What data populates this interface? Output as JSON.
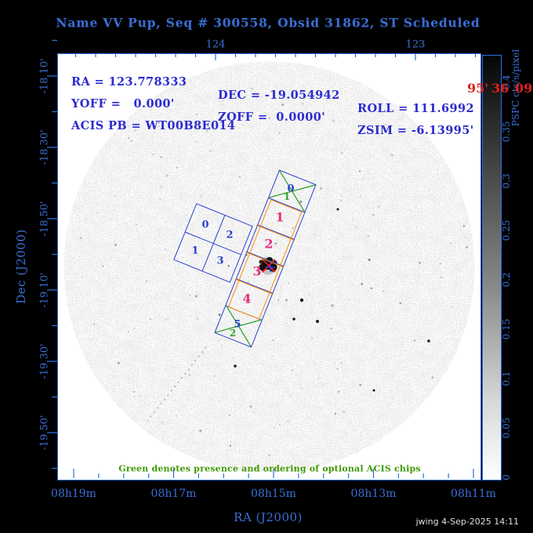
{
  "title": "Name VV Pup, Seq # 300558, Obsid 31862, ST Scheduled",
  "status_info": {
    "line1": [
      "RA = 123.778333",
      "DEC = -19.054942",
      "ROLL = 111.6992"
    ],
    "line2": [
      "YOFF =   0.000'",
      "ZOFF =  0.0000'",
      "ZSIM = -6.13995'"
    ],
    "line3": [
      "ACIS PB = WT00B8E014"
    ]
  },
  "axes": {
    "top": {
      "labels": [
        "124",
        "123"
      ]
    },
    "bottom": {
      "labels": [
        "08h19m",
        "08h17m",
        "08h15m",
        "08h13m",
        "08h11m"
      ],
      "title": "RA (J2000)"
    },
    "left": {
      "labels": [
        "-18 10'",
        "-18 30'",
        "-18 50'",
        "-19 10'",
        "-19 30'",
        "-19 50'"
      ],
      "title": "Dec (J2000)"
    }
  },
  "colorbar": {
    "unit_label": "PSPC cts/s/pixel",
    "tick_labels": [
      "0.4",
      "0.35",
      "0.3",
      "0.25",
      "0.2",
      "0.15",
      "0.1",
      "0.05",
      "0"
    ]
  },
  "overlays": {
    "acis_i": {
      "chip_labels": [
        "0",
        "2",
        "1",
        "3"
      ]
    },
    "acis_s": {
      "chip_labels": [
        "0",
        "1",
        "2",
        "3",
        "4",
        "5"
      ],
      "optional_order_labels": [
        "1",
        "2"
      ]
    },
    "note": "Green denotes presence and ordering of optional ACIS chips",
    "red_fragments": [
      "95'",
      "36",
      "09"
    ]
  },
  "footer": "jwing  4-Sep-2025 14:11",
  "colors": {
    "text_blue": "#3a6fd6",
    "frame_blue": "#2f6fdd",
    "chip_blue": "#2a3fd0",
    "chip_red": "#e62e77",
    "orange": "#ff8a00",
    "green_line": "#2fa32f",
    "green_text": "#3f9a00",
    "marker_red": "#ff1616",
    "red_text": "#e02020"
  },
  "chart_data": {
    "type": "heatmap",
    "title": "Name VV Pup, Seq # 300558, Obsid 31862, ST Scheduled",
    "xlabel": "RA (J2000)",
    "ylabel": "Dec (J2000)",
    "x_axis": {
      "top_tick_labels_deg": [
        "124",
        "123"
      ],
      "bottom_tick_labels": [
        "08h19m",
        "08h17m",
        "08h15m",
        "08h13m",
        "08h11m"
      ],
      "direction": "RA increases to the left"
    },
    "y_axis": {
      "tick_labels": [
        "-18 10'",
        "-18 30'",
        "-18 50'",
        "-19 10'",
        "-19 30'",
        "-19 50'"
      ]
    },
    "colorbar": {
      "label": "PSPC cts/s/pixel",
      "orientation": "vertical",
      "tick_values": [
        0,
        0.05,
        0.1,
        0.15,
        0.2,
        0.25,
        0.3,
        0.35,
        0.4
      ],
      "min": 0,
      "max": 0.43,
      "dark_is_high": true
    },
    "image": "circular ROSAT PSPC grayscale field with faint grain, dark target blob near field center",
    "pointing": {
      "ra_deg": 123.778333,
      "dec_deg": -19.054942,
      "roll_deg": 111.6992,
      "yoff_arcmin": 0.0,
      "zoff_arcmin": 0.0,
      "zsim_arcmin": -6.13995,
      "acis_pb": "WT00B8E014"
    },
    "overlays": {
      "acis_i_chips": [
        "0",
        "2",
        "1",
        "3"
      ],
      "acis_s_chips": [
        "0",
        "1",
        "2",
        "3",
        "4",
        "5"
      ],
      "acis_s_chips_outlined_orange": [
        "1",
        "2",
        "3",
        "4"
      ],
      "optional_chips_green_x": [
        {
          "chip": "0",
          "order": "1"
        },
        {
          "chip": "5",
          "order": "2"
        }
      ],
      "target_marker": "red X and blue cross on black source blob, ACIS-S chip 3"
    }
  }
}
